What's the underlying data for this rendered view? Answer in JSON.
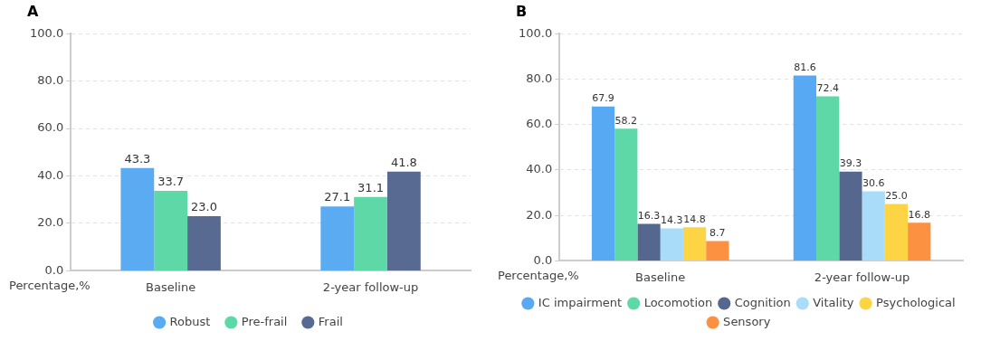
{
  "chart_data": [
    {
      "type": "bar",
      "title": "A",
      "ylabel": "Percentage,%",
      "categories": [
        "Baseline",
        "2-year follow-up"
      ],
      "series": [
        {
          "name": "Robust",
          "color": "#5aabf2",
          "values": [
            43.3,
            27.1
          ],
          "value_labels": [
            "43.3",
            "27.1"
          ]
        },
        {
          "name": "Pre-frail",
          "color": "#5fd8a8",
          "values": [
            33.7,
            31.1
          ],
          "value_labels": [
            "33.7",
            "31.1"
          ]
        },
        {
          "name": "Frail",
          "color": "#596a92",
          "values": [
            23.0,
            41.8
          ],
          "value_labels": [
            "23.0",
            "41.8"
          ]
        }
      ],
      "ylim": [
        0,
        100
      ],
      "yticks": [
        {
          "value": 0,
          "label": "0.0"
        },
        {
          "value": 20,
          "label": "20.0"
        },
        {
          "value": 40,
          "label": "40.0"
        },
        {
          "value": 60,
          "label": "60.0"
        },
        {
          "value": 80,
          "label": "80.0"
        },
        {
          "value": 100,
          "label": "100.0"
        }
      ],
      "grid": "y",
      "legend": "bottom"
    },
    {
      "type": "bar",
      "title": "B",
      "ylabel": "Percentage,%",
      "categories": [
        "Baseline",
        "2-year follow-up"
      ],
      "series": [
        {
          "name": "IC impairment",
          "color": "#56a9f2",
          "values": [
            67.9,
            81.6
          ],
          "value_labels": [
            "67.9",
            "81.6"
          ]
        },
        {
          "name": "Locomotion",
          "color": "#5fd8a8",
          "values": [
            58.2,
            72.4
          ],
          "value_labels": [
            "58.2",
            "72.4"
          ]
        },
        {
          "name": "Cognition",
          "color": "#56678f",
          "values": [
            16.3,
            39.3
          ],
          "value_labels": [
            "16.3",
            "39.3"
          ]
        },
        {
          "name": "Vitality",
          "color": "#a8dcf9",
          "values": [
            14.3,
            30.6
          ],
          "value_labels": [
            "14.3",
            "30.6"
          ]
        },
        {
          "name": "Psychological",
          "color": "#fdd544",
          "values": [
            14.8,
            25.0
          ],
          "value_labels": [
            "14.8",
            "25.0"
          ]
        },
        {
          "name": "Sensory",
          "color": "#fd9142",
          "values": [
            8.7,
            16.8
          ],
          "value_labels": [
            "8.7",
            "16.8"
          ]
        }
      ],
      "ylim": [
        0,
        100
      ],
      "yticks": [
        {
          "value": 0,
          "label": "0.0"
        },
        {
          "value": 20,
          "label": "20.0"
        },
        {
          "value": 40,
          "label": "40.0"
        },
        {
          "value": 60,
          "label": "60.0"
        },
        {
          "value": 80,
          "label": "80.0"
        },
        {
          "value": 100,
          "label": "100.0"
        }
      ],
      "grid": "y",
      "legend": "bottom"
    }
  ]
}
